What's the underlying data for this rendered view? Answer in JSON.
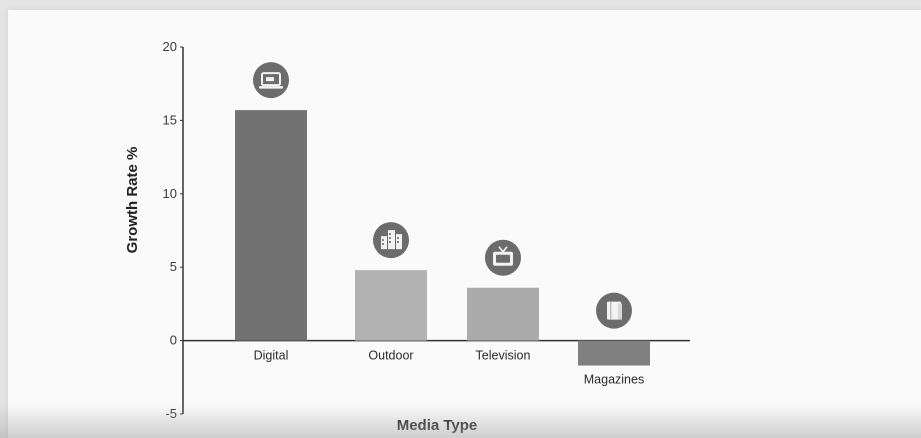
{
  "chart_data": {
    "type": "bar",
    "title": "",
    "xlabel": "Media Type",
    "ylabel": "Growth Rate %",
    "ylim": [
      -5,
      20
    ],
    "yticks": [
      -5,
      0,
      5,
      10,
      15,
      20
    ],
    "grid": false,
    "categories": [
      "Digital",
      "Outdoor",
      "Television",
      "Magazines"
    ],
    "values": [
      15.7,
      4.8,
      3.6,
      -1.7
    ],
    "icons": [
      "laptop-icon",
      "buildings-icon",
      "television-icon",
      "magazine-icon"
    ],
    "colors": {
      "Digital": "#727272",
      "Outdoor": "#b2b2b2",
      "Television": "#ababab",
      "Magazines": "#808080",
      "icon_circle": "#6c6c6c",
      "axis": "#333333"
    }
  }
}
